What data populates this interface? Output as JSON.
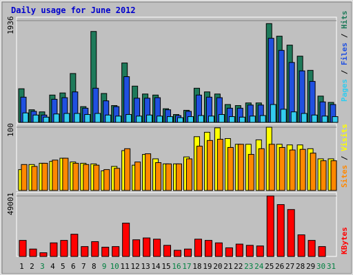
{
  "chart_data": [
    {
      "type": "bar",
      "panel": "hits-files-pages",
      "title": "Daily usage for June 2012",
      "categories": [
        "1",
        "2",
        "3",
        "4",
        "5",
        "6",
        "7",
        "8",
        "9",
        "10",
        "11",
        "12",
        "13",
        "14",
        "15",
        "16",
        "17",
        "18",
        "19",
        "20",
        "21",
        "22",
        "23",
        "24",
        "25",
        "26",
        "27",
        "28",
        "29",
        "30",
        "31"
      ],
      "ymax_label": "1936",
      "ylim": [
        0,
        1936
      ],
      "series": [
        {
          "name": "Hits",
          "color": "#1e7a5a",
          "values": [
            640,
            240,
            200,
            520,
            560,
            930,
            300,
            1730,
            550,
            320,
            1130,
            690,
            540,
            520,
            260,
            150,
            230,
            650,
            580,
            540,
            340,
            320,
            370,
            370,
            1880,
            1640,
            1470,
            1260,
            990,
            500,
            380
          ]
        },
        {
          "name": "Files",
          "color": "#2050e0",
          "values": [
            480,
            210,
            140,
            440,
            470,
            580,
            270,
            650,
            410,
            300,
            870,
            460,
            460,
            470,
            240,
            130,
            210,
            520,
            480,
            470,
            270,
            270,
            330,
            330,
            1600,
            1370,
            1140,
            980,
            780,
            390,
            340
          ]
        },
        {
          "name": "Pages",
          "color": "#33ccee",
          "values": [
            180,
            140,
            100,
            160,
            170,
            170,
            150,
            170,
            140,
            120,
            150,
            120,
            140,
            120,
            110,
            90,
            110,
            130,
            120,
            150,
            110,
            100,
            120,
            130,
            340,
            250,
            200,
            170,
            140,
            120,
            110
          ]
        }
      ],
      "legend_position": "right-vertical"
    },
    {
      "type": "bar",
      "panel": "visits-sites",
      "categories": [
        "1",
        "2",
        "3",
        "4",
        "5",
        "6",
        "7",
        "8",
        "9",
        "10",
        "11",
        "12",
        "13",
        "14",
        "15",
        "16",
        "17",
        "18",
        "19",
        "20",
        "21",
        "22",
        "23",
        "24",
        "25",
        "26",
        "27",
        "28",
        "29",
        "30",
        "31"
      ],
      "ymax_label": "100",
      "ylim": [
        0,
        100
      ],
      "series": [
        {
          "name": "Visits",
          "color": "#ffff00",
          "values": [
            33,
            41,
            43,
            46,
            51,
            45,
            43,
            42,
            31,
            38,
            63,
            40,
            57,
            50,
            42,
            42,
            53,
            85,
            92,
            99,
            82,
            73,
            73,
            80,
            100,
            73,
            72,
            72,
            66,
            50,
            50
          ]
        },
        {
          "name": "Sites",
          "color": "#ff8800",
          "values": [
            41,
            38,
            43,
            48,
            51,
            43,
            41,
            40,
            33,
            35,
            66,
            45,
            58,
            44,
            42,
            42,
            50,
            70,
            79,
            81,
            68,
            73,
            57,
            66,
            73,
            68,
            64,
            65,
            59,
            47,
            47
          ]
        }
      ],
      "legend_position": "right-vertical"
    },
    {
      "type": "bar",
      "panel": "kbytes",
      "categories": [
        "1",
        "2",
        "3",
        "4",
        "5",
        "6",
        "7",
        "8",
        "9",
        "10",
        "11",
        "12",
        "13",
        "14",
        "15",
        "16",
        "17",
        "18",
        "19",
        "20",
        "21",
        "22",
        "23",
        "24",
        "25",
        "26",
        "27",
        "28",
        "29",
        "30",
        "31"
      ],
      "ymax_label": "49001",
      "ylim": [
        0,
        49001
      ],
      "series": [
        {
          "name": "KBytes",
          "color": "#ff0000",
          "values": [
            13000,
            6000,
            3000,
            11000,
            13000,
            18000,
            8000,
            12000,
            7500,
            8000,
            27000,
            13500,
            15000,
            14000,
            9000,
            5000,
            6000,
            14000,
            13000,
            11000,
            7000,
            10000,
            9000,
            8500,
            49000,
            42000,
            38000,
            17500,
            13000,
            8000,
            0
          ]
        }
      ],
      "legend_position": "right-vertical"
    }
  ],
  "axis": {
    "day_labels_black": [
      "1",
      "2",
      "4",
      "5",
      "6",
      "7",
      "8",
      "11",
      "12",
      "13",
      "14",
      "15",
      "18",
      "19",
      "20",
      "21",
      "22",
      "25",
      "26",
      "27",
      "28",
      "29"
    ],
    "day_labels_green": [
      "3",
      "9",
      "10",
      "16",
      "17",
      "23",
      "24",
      "30",
      "31"
    ]
  },
  "legend": {
    "top": [
      {
        "text": "Pages",
        "color": "#33ccee"
      },
      {
        "text": " / ",
        "color": "#000000"
      },
      {
        "text": "Files",
        "color": "#2050e0"
      },
      {
        "text": " / ",
        "color": "#000000"
      },
      {
        "text": "Hits",
        "color": "#1e7a5a"
      }
    ],
    "middle": [
      {
        "text": "Sites",
        "color": "#ff8800"
      },
      {
        "text": " / ",
        "color": "#000000"
      },
      {
        "text": "Visits",
        "color": "#ffff00"
      }
    ],
    "bottom": [
      {
        "text": "KBytes",
        "color": "#ff0000"
      }
    ]
  },
  "colors": {
    "background": "#c0c0c0",
    "frame_light": "#ffffff",
    "frame_dark": "#808080",
    "title": "#0000cc",
    "weekend": "#008040"
  }
}
